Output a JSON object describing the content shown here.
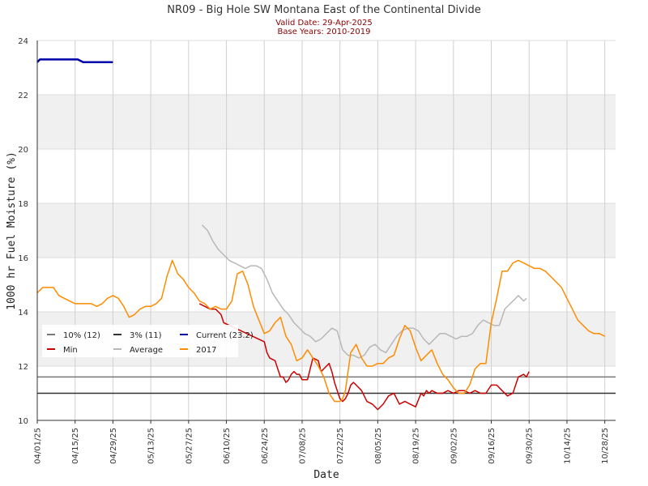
{
  "chart_data": {
    "type": "line",
    "title": "NR09 - Big Hole SW Montana East of the Continental Divide",
    "subtitle_lines": [
      "Valid Date: 29-Apr-2025",
      "Base Years: 2010-2019"
    ],
    "xlabel": "Date",
    "ylabel": "1000 hr Fuel Moisture (%)",
    "ylim": [
      10,
      24
    ],
    "yticks": [
      10,
      12,
      14,
      16,
      18,
      20,
      22,
      24
    ],
    "x_range_days": [
      0,
      210
    ],
    "xticks": [
      {
        "day": 0,
        "label": "04/01/25"
      },
      {
        "day": 14,
        "label": "04/15/25"
      },
      {
        "day": 28,
        "label": "04/29/25"
      },
      {
        "day": 42,
        "label": "05/13/25"
      },
      {
        "day": 56,
        "label": "05/27/25"
      },
      {
        "day": 70,
        "label": "06/10/25"
      },
      {
        "day": 84,
        "label": "06/24/25"
      },
      {
        "day": 98,
        "label": "07/08/25"
      },
      {
        "day": 112,
        "label": "07/22/25"
      },
      {
        "day": 126,
        "label": "08/05/25"
      },
      {
        "day": 140,
        "label": "08/19/25"
      },
      {
        "day": 154,
        "label": "09/02/25"
      },
      {
        "day": 168,
        "label": "09/16/25"
      },
      {
        "day": 182,
        "label": "09/30/25"
      },
      {
        "day": 196,
        "label": "10/14/25"
      },
      {
        "day": 210,
        "label": "10/28/25"
      }
    ],
    "grid": true,
    "legend_position": "left",
    "reference_lines": [
      {
        "name": "10% (12)",
        "value": 11.6,
        "color": "#777777"
      },
      {
        "name": "3% (11)",
        "value": 11.0,
        "color": "#333333"
      }
    ],
    "series": [
      {
        "name": "Current (23.2)",
        "color": "#0000aa",
        "x": [
          0,
          1,
          3,
          10,
          15,
          17,
          19,
          25,
          28
        ],
        "y": [
          23.2,
          23.3,
          23.3,
          23.3,
          23.3,
          23.2,
          23.2,
          23.2,
          23.2
        ]
      },
      {
        "name": "Min",
        "color": "#cc0000",
        "x": [
          60,
          62,
          64,
          66,
          68,
          69,
          84,
          85,
          86,
          88,
          89,
          90,
          91,
          92,
          93,
          94,
          95,
          96,
          97,
          98,
          100,
          102,
          104,
          105,
          106,
          107,
          108,
          109,
          110,
          111,
          112,
          113,
          114,
          115,
          116,
          117,
          118,
          120,
          122,
          124,
          126,
          128,
          130,
          132,
          134,
          136,
          138,
          140,
          142,
          143,
          144,
          145,
          146,
          148,
          150,
          152,
          154,
          156,
          158,
          160,
          162,
          164,
          166,
          168,
          170,
          172,
          174,
          176,
          178,
          180,
          181,
          182
        ],
        "y": [
          14.3,
          14.2,
          14.1,
          14.1,
          13.9,
          13.6,
          12.9,
          12.5,
          12.3,
          12.2,
          11.9,
          11.6,
          11.6,
          11.4,
          11.5,
          11.7,
          11.8,
          11.7,
          11.7,
          11.5,
          11.5,
          12.3,
          12.2,
          11.8,
          11.9,
          12.0,
          12.1,
          11.8,
          11.4,
          11.1,
          10.8,
          10.7,
          10.8,
          11.0,
          11.3,
          11.4,
          11.3,
          11.1,
          10.7,
          10.6,
          10.4,
          10.6,
          10.9,
          11.0,
          10.6,
          10.7,
          10.6,
          10.5,
          11.0,
          10.9,
          11.1,
          11.0,
          11.1,
          11.0,
          11.0,
          11.1,
          11.0,
          11.1,
          11.1,
          11.0,
          11.1,
          11.0,
          11.0,
          11.3,
          11.3,
          11.1,
          10.9,
          11.0,
          11.6,
          11.7,
          11.6,
          11.8
        ]
      },
      {
        "name": "Average",
        "color": "#b8b8b8",
        "x": [
          61,
          63,
          65,
          67,
          69,
          71,
          73,
          75,
          77,
          79,
          81,
          83,
          85,
          87,
          89,
          91,
          93,
          95,
          97,
          99,
          101,
          103,
          105,
          107,
          109,
          111,
          113,
          115,
          117,
          119,
          121,
          123,
          125,
          127,
          129,
          131,
          133,
          135,
          137,
          139,
          141,
          143,
          145,
          147,
          149,
          151,
          153,
          155,
          157,
          159,
          161,
          163,
          165,
          167,
          169,
          171,
          173,
          175,
          177,
          178,
          179,
          180,
          181
        ],
        "y": [
          17.2,
          17.0,
          16.6,
          16.3,
          16.1,
          15.9,
          15.8,
          15.7,
          15.6,
          15.7,
          15.7,
          15.6,
          15.2,
          14.7,
          14.4,
          14.1,
          13.9,
          13.6,
          13.4,
          13.2,
          13.1,
          12.9,
          13.0,
          13.2,
          13.4,
          13.3,
          12.6,
          12.4,
          12.4,
          12.3,
          12.4,
          12.7,
          12.8,
          12.6,
          12.5,
          12.8,
          13.1,
          13.3,
          13.4,
          13.4,
          13.3,
          13.0,
          12.8,
          13.0,
          13.2,
          13.2,
          13.1,
          13.0,
          13.1,
          13.1,
          13.2,
          13.5,
          13.7,
          13.6,
          13.5,
          13.5,
          14.1,
          14.3,
          14.5,
          14.6,
          14.5,
          14.4,
          14.5
        ]
      },
      {
        "name": "2017",
        "color": "#ff8c00",
        "x": [
          0,
          2,
          4,
          6,
          8,
          10,
          12,
          14,
          16,
          18,
          20,
          22,
          24,
          26,
          28,
          30,
          32,
          34,
          36,
          38,
          40,
          42,
          44,
          46,
          48,
          50,
          52,
          54,
          56,
          58,
          60,
          62,
          64,
          66,
          68,
          70,
          72,
          74,
          76,
          78,
          80,
          82,
          84,
          86,
          88,
          90,
          92,
          94,
          96,
          98,
          100,
          102,
          104,
          106,
          108,
          110,
          112,
          113,
          114,
          116,
          118,
          120,
          122,
          124,
          126,
          128,
          130,
          132,
          134,
          136,
          138,
          140,
          142,
          144,
          146,
          148,
          150,
          152,
          154,
          156,
          158,
          160,
          162,
          164,
          166,
          168,
          170,
          172,
          174,
          176,
          178,
          180,
          182,
          184,
          186,
          188,
          190,
          192,
          194,
          196,
          198,
          200,
          202,
          204,
          206,
          208,
          210
        ],
        "y": [
          14.7,
          14.9,
          14.9,
          14.9,
          14.6,
          14.5,
          14.4,
          14.3,
          14.3,
          14.3,
          14.3,
          14.2,
          14.3,
          14.5,
          14.6,
          14.5,
          14.2,
          13.8,
          13.9,
          14.1,
          14.2,
          14.2,
          14.3,
          14.5,
          15.3,
          15.9,
          15.4,
          15.2,
          14.9,
          14.7,
          14.4,
          14.3,
          14.1,
          14.2,
          14.1,
          14.1,
          14.4,
          15.4,
          15.5,
          15.0,
          14.2,
          13.7,
          13.2,
          13.3,
          13.6,
          13.8,
          13.1,
          12.8,
          12.2,
          12.3,
          12.6,
          12.3,
          12.0,
          11.6,
          11.0,
          10.7,
          10.7,
          10.8,
          11.1,
          12.5,
          12.8,
          12.3,
          12.0,
          12.0,
          12.1,
          12.1,
          12.3,
          12.4,
          13.0,
          13.5,
          13.3,
          12.7,
          12.2,
          12.4,
          12.6,
          12.1,
          11.7,
          11.5,
          11.2,
          11.0,
          11.0,
          11.3,
          11.9,
          12.1,
          12.1,
          13.6,
          14.5,
          15.5,
          15.5,
          15.8,
          15.9,
          15.8,
          15.7,
          15.6,
          15.6,
          15.5,
          15.3,
          15.1,
          14.9,
          14.5,
          14.1,
          13.7,
          13.5,
          13.3,
          13.2,
          13.2,
          13.1
        ]
      }
    ],
    "legend": [
      {
        "label": "10% (12)",
        "color": "#777777"
      },
      {
        "label": "3% (11)",
        "color": "#333333"
      },
      {
        "label": "Current (23.2)",
        "color": "#0000aa"
      },
      {
        "label": "Min",
        "color": "#cc0000"
      },
      {
        "label": "Average",
        "color": "#b8b8b8"
      },
      {
        "label": "2017",
        "color": "#ff8c00"
      }
    ]
  }
}
